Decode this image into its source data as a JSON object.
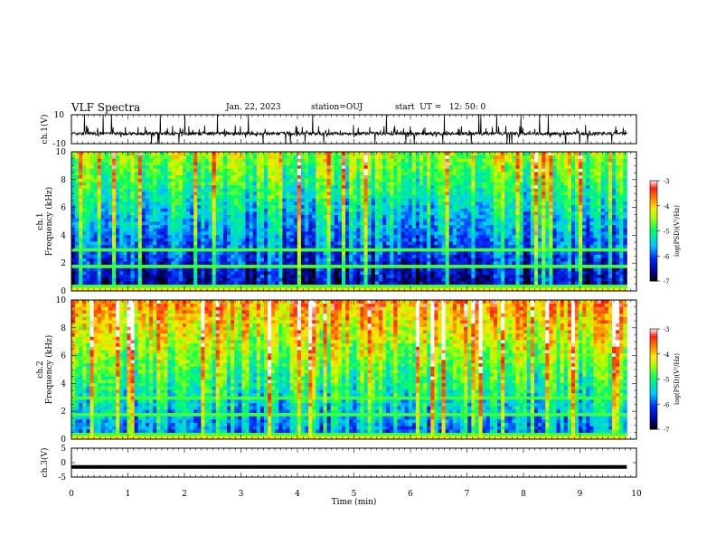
{
  "header": {
    "title": "VLF Spectra",
    "date": "Jan. 22, 2023",
    "station": "station=OUJ",
    "start": "start  UT =   12: 50: 0"
  },
  "chart_data": [
    {
      "type": "line",
      "ylabel": "ch.1(V)",
      "ylim": [
        -10,
        10
      ],
      "yticks": [
        "10",
        "-10"
      ],
      "xlim": [
        0,
        10
      ],
      "series": [
        {
          "baseline": -3,
          "noise_range": [
            -6,
            3
          ],
          "spike_range": [
            -10,
            10
          ]
        }
      ]
    },
    {
      "type": "heatmap",
      "ylabel": "ch.1\nFrequency (kHz)",
      "ylim": [
        0,
        10
      ],
      "yticks": [
        "0",
        "2",
        "4",
        "6",
        "8",
        "10"
      ],
      "xlim": [
        0,
        9.83
      ],
      "colorbar": {
        "label": "log(PSD)(V²/Hz)",
        "range": [
          -7,
          -3
        ],
        "ticks": [
          "-3",
          "-4",
          "-5",
          "-6",
          "-7"
        ]
      }
    },
    {
      "type": "heatmap",
      "ylabel": "ch.2\nFrequency (kHz)",
      "ylim": [
        0,
        10
      ],
      "yticks": [
        "0",
        "2",
        "4",
        "6",
        "8",
        "10"
      ],
      "xlim": [
        0,
        9.83
      ],
      "colorbar": {
        "label": "log(PSD)(V²/Hz)",
        "range": [
          -7,
          -3
        ],
        "ticks": [
          "-3",
          "-4",
          "-5",
          "-6",
          "-7"
        ]
      }
    },
    {
      "type": "line",
      "ylabel": "ch.3(V)",
      "ylim": [
        -5,
        5
      ],
      "yticks": [
        "5",
        "0",
        "-5"
      ],
      "series": [
        {
          "constant": -1.5
        }
      ]
    }
  ],
  "xaxis": {
    "label": "Time (min)",
    "ticks": [
      "0",
      "1",
      "2",
      "3",
      "4",
      "5",
      "6",
      "7",
      "8",
      "9",
      "10"
    ]
  }
}
